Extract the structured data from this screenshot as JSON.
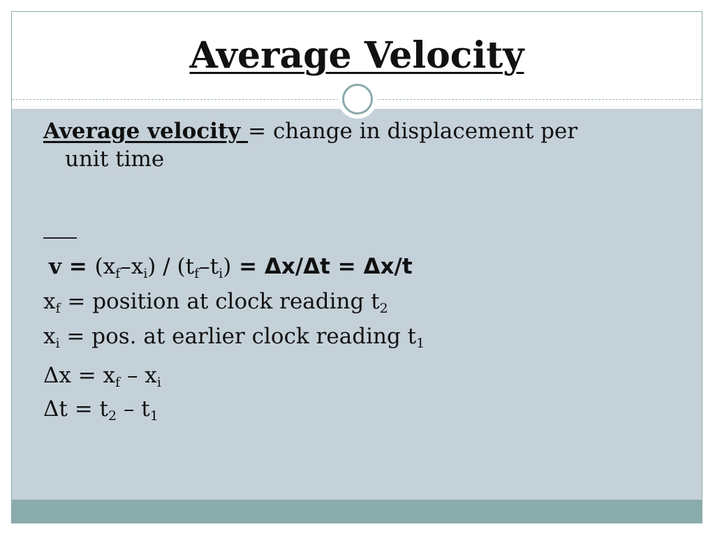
{
  "title": "Average Velocity",
  "definition": {
    "term": "Average velocity ",
    "text": "= change in displacement per",
    "continuation": "unit time"
  },
  "formula": {
    "v": "v",
    "eq1": " = ",
    "paren1_open": "(x",
    "xf_sub": "f",
    "dash1": "–x",
    "xi_sub": "i",
    "paren1_close": ")",
    "slash": " / ",
    "paren2_open": "(t",
    "tf_sub": "f",
    "dash2": "–t",
    "ti_sub": "i",
    "paren2_close": ")",
    "eq2": " = ",
    "delta_x_over_delta_t": "Δx/Δt = Δx/t"
  },
  "lines": {
    "xf_var": "x",
    "xf_sub": "f",
    "xf_text": " = position at clock reading t",
    "xf_t_sub": "2",
    "xi_var": "x",
    "xi_sub": "i",
    "xi_text": " = pos. at earlier clock reading t",
    "xi_t_sub": "1",
    "dx_lhs": "Δx = x",
    "dx_sub_f": "f",
    "dx_mid": " – x",
    "dx_sub_i": "i",
    "dt_lhs": "Δt = t",
    "dt_sub_2": "2",
    "dt_mid": " – t",
    "dt_sub_1": "1"
  },
  "colors": {
    "content_bg": "#c5d1d9",
    "footer_bg": "#8aabab",
    "accent": "#8aa9ab"
  }
}
